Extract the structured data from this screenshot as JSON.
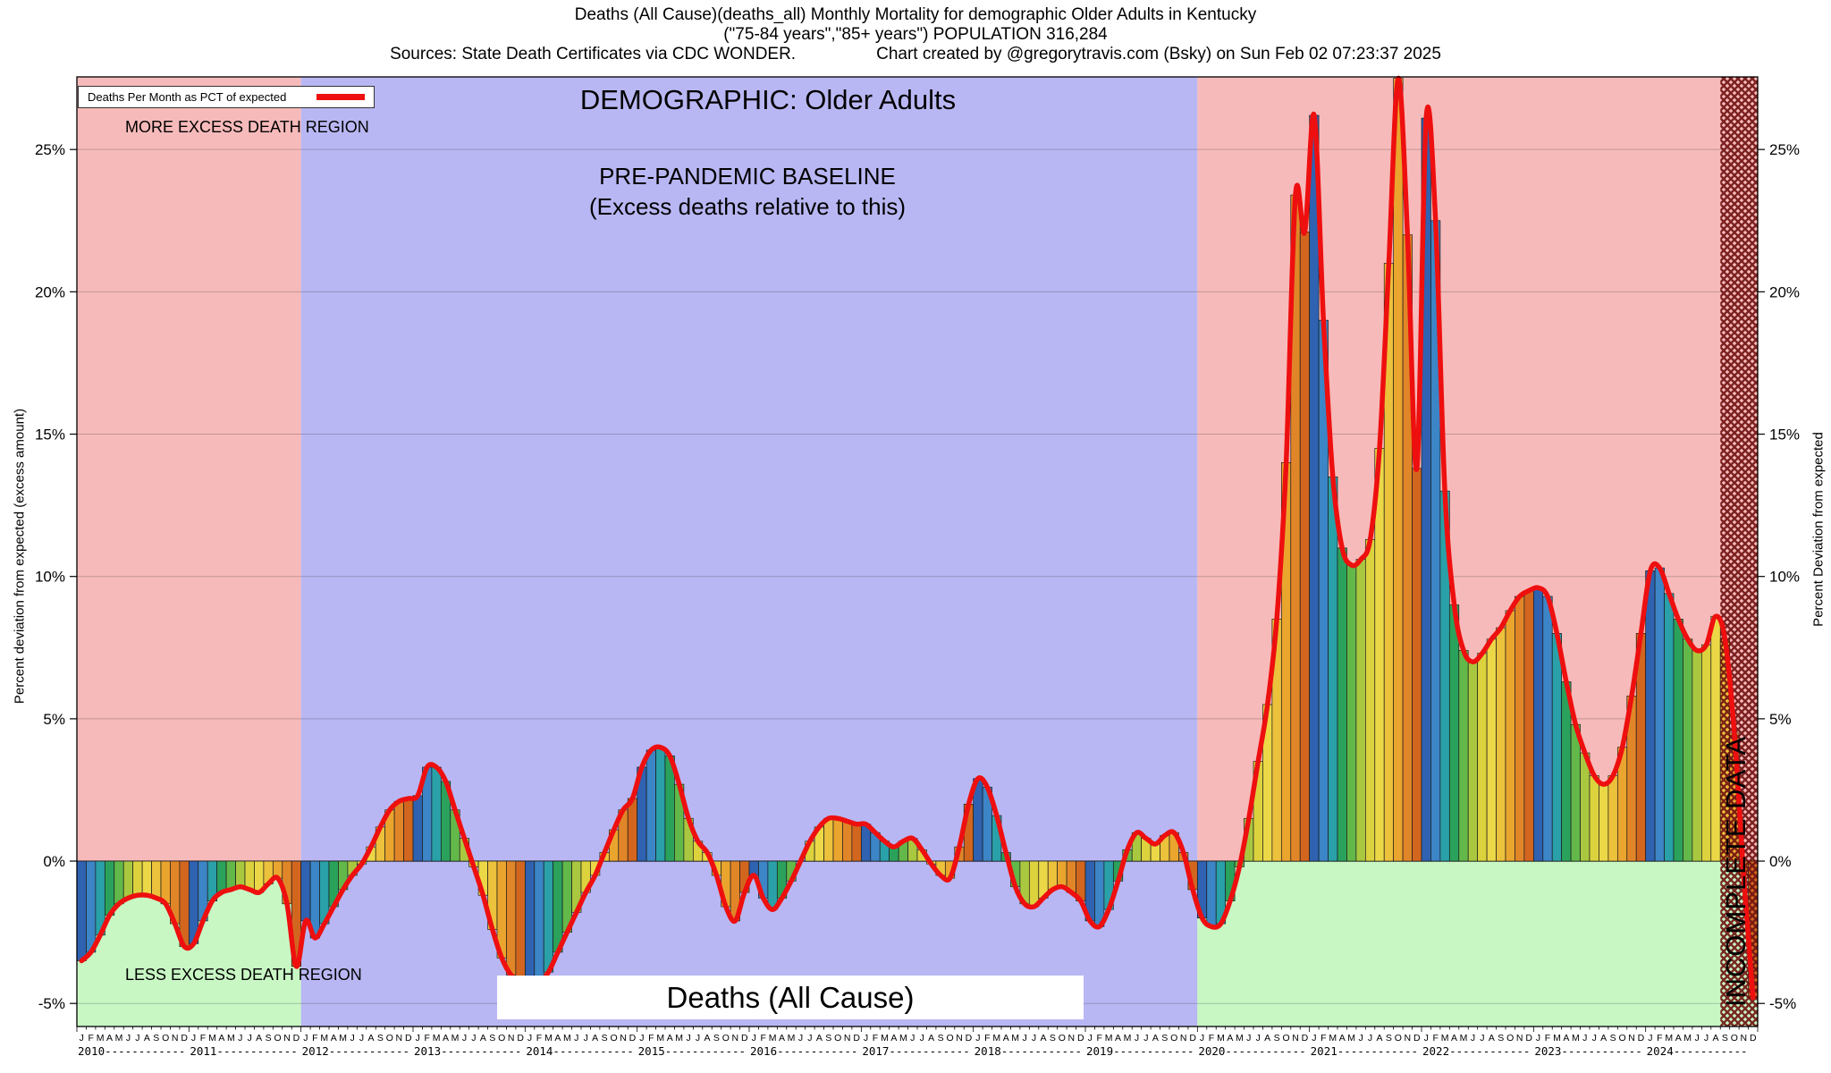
{
  "header": {
    "line1": "Deaths (All Cause)(deaths_all) Monthly Mortality for demographic Older Adults in Kentucky",
    "line2": "(\"75-84 years\",\"85+ years\") POPULATION 316,284",
    "sources": "Sources: State Death Certificates via CDC WONDER.",
    "created": "Chart created by @gregorytravis.com (Bsky) on Sun Feb 02 07:23:37 2025"
  },
  "plot": {
    "legend_label": "Deaths Per Month as PCT of expected",
    "more_region_label": "MORE EXCESS DEATH REGION",
    "less_region_label": "LESS EXCESS DEATH REGION",
    "demographic_title": "DEMOGRAPHIC: Older Adults",
    "baseline_title": "PRE-PANDEMIC BASELINE",
    "baseline_subtitle": "(Excess deaths relative to this)",
    "series_box_label": "Deaths (All Cause)",
    "incomplete_label": "INCOMPLETE DATA",
    "left_axis_label": "Percent deviation from expected (excess amount)",
    "right_axis_label": "Percent Deviation from expected"
  },
  "chart_data": {
    "type": "bar",
    "line_overlay": true,
    "title": "Deaths (All Cause)(deaths_all) Monthly Mortality for demographic Older Adults in Kentucky",
    "ylabel": "Percent deviation from expected (excess amount)",
    "y2label": "Percent Deviation from expected",
    "x_start": "2010-01",
    "x_end": "2024-12",
    "years": [
      2010,
      2011,
      2012,
      2013,
      2014,
      2015,
      2016,
      2017,
      2018,
      2019,
      2020,
      2021,
      2022,
      2023,
      2024
    ],
    "month_letters": "JFMAMJJASOND",
    "y_ticks": [
      -5,
      0,
      5,
      10,
      15,
      20,
      25
    ],
    "y_range": [
      -5.81,
      27.55
    ],
    "series": [
      {
        "name": "Deaths Per Month as PCT of expected",
        "units": "percent deviation from expected",
        "values": [
          -3.5,
          -3.2,
          -2.6,
          -1.9,
          -1.5,
          -1.3,
          -1.2,
          -1.2,
          -1.3,
          -1.5,
          -2.2,
          -3.0,
          -2.9,
          -2.1,
          -1.4,
          -1.1,
          -1.0,
          -0.9,
          -1.0,
          -1.1,
          -0.8,
          -0.6,
          -1.5,
          -3.7,
          -2.1,
          -2.7,
          -2.2,
          -1.6,
          -1.0,
          -0.5,
          -0.1,
          0.5,
          1.2,
          1.8,
          2.1,
          2.2,
          2.3,
          3.3,
          3.3,
          2.8,
          1.8,
          0.8,
          -0.2,
          -1.2,
          -2.4,
          -3.4,
          -4.0,
          -4.2,
          -4.1,
          -4.25,
          -3.9,
          -3.2,
          -2.5,
          -1.8,
          -1.1,
          -0.5,
          0.3,
          1.1,
          1.8,
          2.2,
          3.3,
          3.9,
          4.0,
          3.7,
          2.7,
          1.5,
          0.7,
          0.3,
          -0.5,
          -1.6,
          -2.1,
          -1.1,
          -0.5,
          -1.3,
          -1.7,
          -1.3,
          -0.7,
          0.0,
          0.7,
          1.2,
          1.5,
          1.5,
          1.4,
          1.3,
          1.3,
          1.0,
          0.7,
          0.5,
          0.7,
          0.8,
          0.4,
          -0.1,
          -0.5,
          -0.6,
          0.5,
          2.0,
          2.9,
          2.6,
          1.6,
          0.3,
          -0.9,
          -1.5,
          -1.6,
          -1.3,
          -1.0,
          -0.9,
          -1.1,
          -1.4,
          -2.1,
          -2.3,
          -1.7,
          -0.7,
          0.4,
          1.0,
          0.8,
          0.6,
          0.9,
          1.0,
          0.3,
          -1.0,
          -2.0,
          -2.3,
          -2.2,
          -1.4,
          -0.2,
          1.5,
          3.5,
          5.5,
          8.5,
          14.0,
          23.4,
          22.1,
          26.2,
          19.0,
          13.5,
          11.0,
          10.4,
          10.6,
          11.3,
          14.5,
          21.0,
          27.5,
          22.0,
          13.8,
          26.1,
          22.5,
          13.0,
          9.0,
          7.4,
          7.0,
          7.3,
          7.8,
          8.2,
          8.8,
          9.3,
          9.5,
          9.6,
          9.3,
          8.0,
          6.3,
          4.8,
          3.8,
          3.0,
          2.7,
          3.0,
          4.0,
          5.8,
          8.0,
          10.2,
          10.3,
          9.4,
          8.5,
          7.8,
          7.4,
          7.6,
          8.6,
          7.8,
          4.5,
          -0.5,
          -4.8
        ]
      }
    ],
    "regions": {
      "baseline_start_index": 24,
      "pandemic_start_index": 120,
      "incomplete_start_index": 176,
      "baseline_color": "#b9b7f3",
      "more_excess_color": "#f7baba",
      "less_excess_color": "#c8f7c4",
      "incomplete_hatch_color": "#6e1010"
    },
    "month_colors": [
      "#2f62b0",
      "#3c85c6",
      "#2aa0a8",
      "#2ba25c",
      "#63b84a",
      "#a9c840",
      "#dcd23e",
      "#ecd847",
      "#ecc13b",
      "#eaa52f",
      "#e18628",
      "#d2661f"
    ],
    "line_color": "#ee0f0f",
    "legend": {
      "position": "top-left",
      "entries": [
        "Deaths Per Month as PCT of expected"
      ]
    }
  }
}
